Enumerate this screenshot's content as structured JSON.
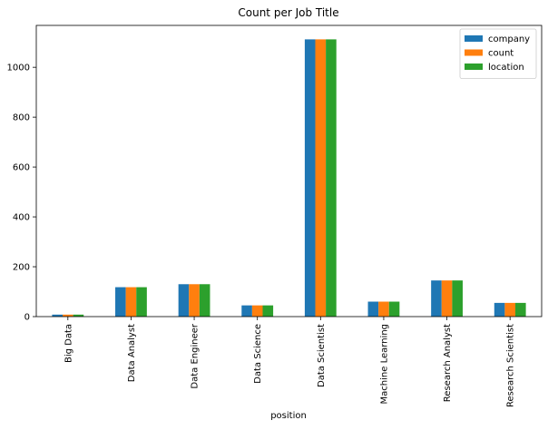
{
  "chart_data": {
    "type": "bar",
    "title": "Count per Job Title",
    "xlabel": "position",
    "ylabel": "",
    "categories": [
      "Big Data",
      "Data Analyst",
      "Data Engineer",
      "Data Science",
      "Data Scientist",
      "Machine Learning",
      "Research Analyst",
      "Research Scientist"
    ],
    "series": [
      {
        "name": "company",
        "color": "#1f77b4",
        "values": [
          8,
          118,
          130,
          45,
          1112,
          60,
          145,
          55
        ]
      },
      {
        "name": "count",
        "color": "#ff7f0e",
        "values": [
          8,
          118,
          130,
          45,
          1112,
          60,
          145,
          55
        ]
      },
      {
        "name": "location",
        "color": "#2ca02c",
        "values": [
          8,
          118,
          130,
          45,
          1112,
          60,
          145,
          55
        ]
      }
    ],
    "ylim": [
      0,
      1168
    ],
    "yticks": [
      0,
      200,
      400,
      600,
      800,
      1000
    ],
    "ytick_labels": [
      "0",
      "200",
      "400",
      "600",
      "800",
      "1000"
    ],
    "legend_position": "top-right",
    "grid": false
  }
}
